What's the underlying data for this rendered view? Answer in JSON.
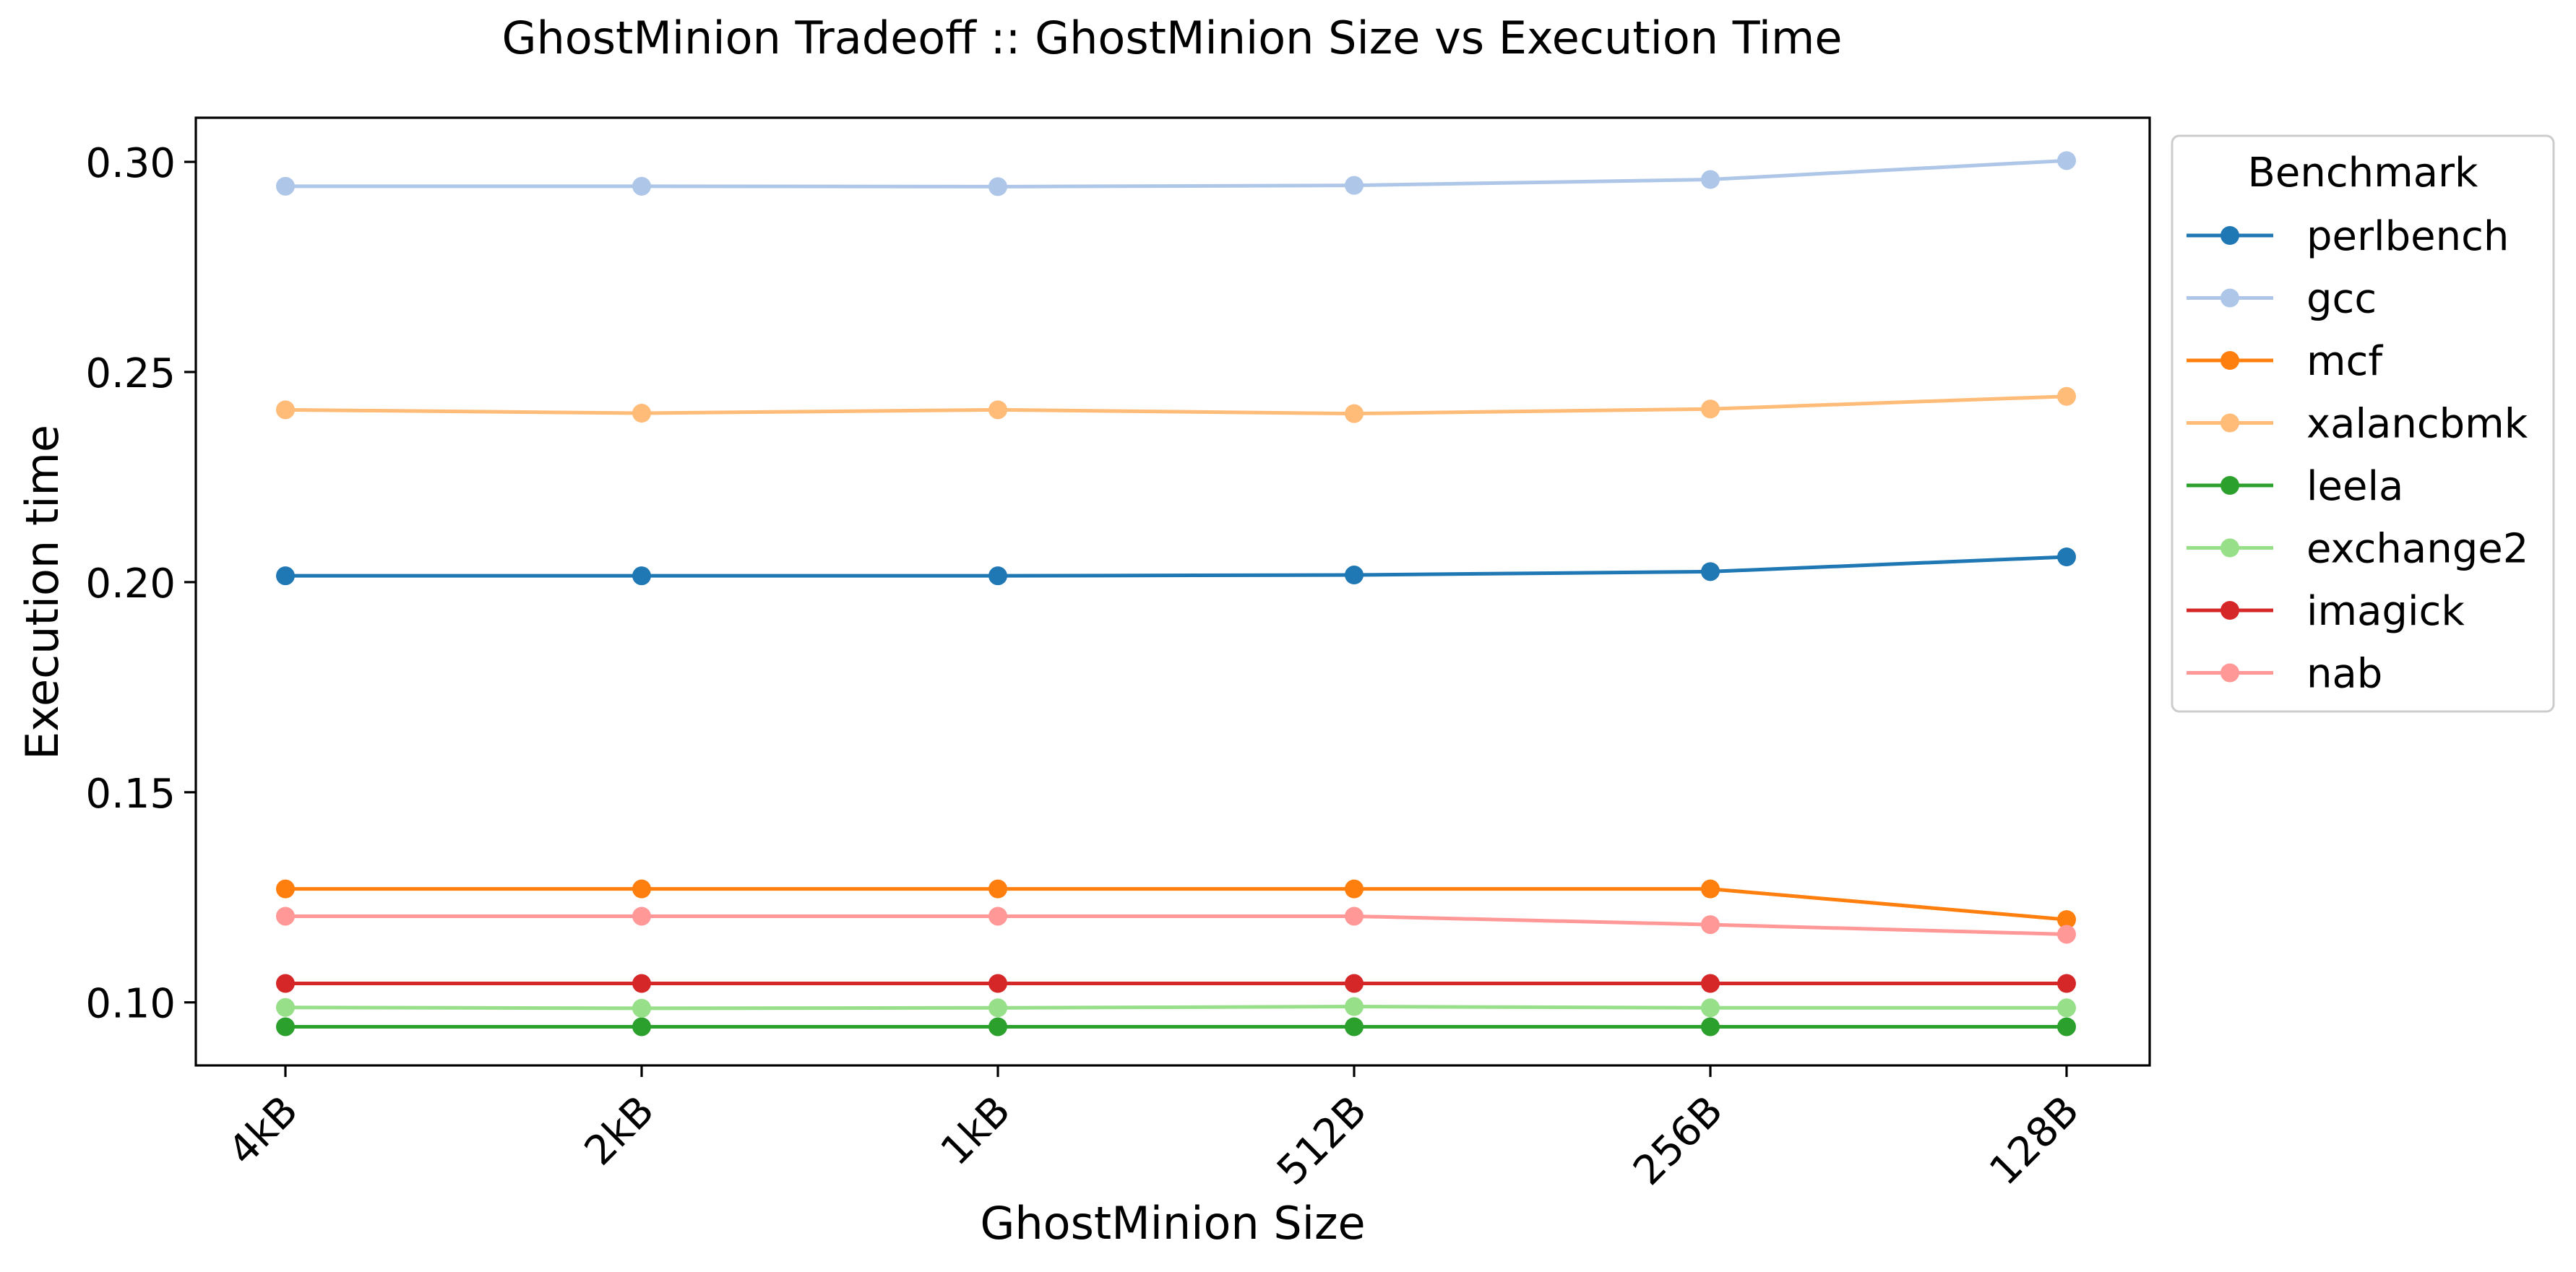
{
  "chart_data": {
    "type": "line",
    "title": "GhostMinion Tradeoff :: GhostMinion Size vs Execution Time",
    "xlabel": "GhostMinion Size",
    "ylabel": "Execution time",
    "categories": [
      "4kB",
      "2kB",
      "1kB",
      "512B",
      "256B",
      "128B"
    ],
    "ylim": [
      0.085,
      0.3105
    ],
    "yticks": [
      0.1,
      0.15,
      0.2,
      0.25,
      0.3
    ],
    "ytick_labels": [
      "0.10",
      "0.15",
      "0.20",
      "0.25",
      "0.30"
    ],
    "grid": false,
    "legend": {
      "title": "Benchmark",
      "placement": "outside-right-top"
    },
    "series": [
      {
        "name": "perlbench",
        "color": "#1f77b4",
        "values": [
          0.2015,
          0.2015,
          0.2015,
          0.2017,
          0.2025,
          0.206
        ]
      },
      {
        "name": "gcc",
        "color": "#aec7e8",
        "values": [
          0.2942,
          0.2942,
          0.2941,
          0.2944,
          0.2958,
          0.3003
        ]
      },
      {
        "name": "mcf",
        "color": "#ff7f0e",
        "values": [
          0.127,
          0.127,
          0.127,
          0.127,
          0.127,
          0.1197
        ]
      },
      {
        "name": "xalancbmk",
        "color": "#ffbb78",
        "values": [
          0.241,
          0.2402,
          0.241,
          0.2401,
          0.2412,
          0.2442
        ]
      },
      {
        "name": "leela",
        "color": "#2ca02c",
        "values": [
          0.0942,
          0.0942,
          0.0942,
          0.0942,
          0.0942,
          0.0942
        ]
      },
      {
        "name": "exchange2",
        "color": "#98df8a",
        "values": [
          0.0988,
          0.0986,
          0.0987,
          0.099,
          0.0987,
          0.0987
        ]
      },
      {
        "name": "imagick",
        "color": "#d62728",
        "values": [
          0.1045,
          0.1045,
          0.1045,
          0.1045,
          0.1045,
          0.1045
        ]
      },
      {
        "name": "nab",
        "color": "#ff9896",
        "values": [
          0.1205,
          0.1205,
          0.1205,
          0.1205,
          0.1185,
          0.1162
        ]
      }
    ]
  }
}
